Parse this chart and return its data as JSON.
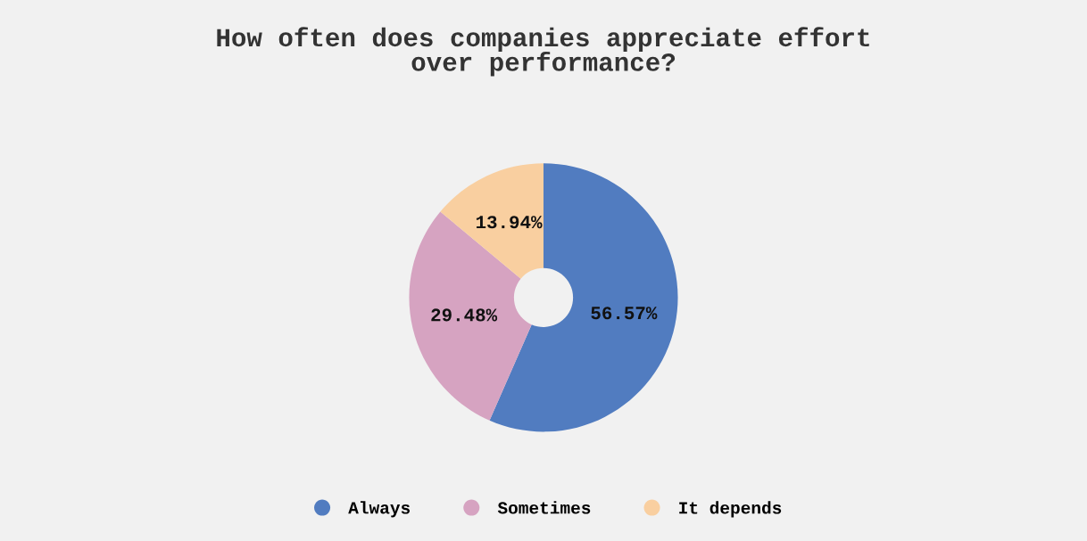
{
  "chart_data": {
    "type": "donut",
    "title": "How often does companies appreciate effort\nover performance?",
    "categories": [
      "Always",
      "Sometimes",
      "It depends"
    ],
    "values": [
      56.57,
      29.48,
      13.94
    ],
    "value_labels": [
      "56.57%",
      "29.48%",
      "13.94%"
    ],
    "colors": [
      "#517cc0",
      "#d6a3c1",
      "#f9cfa0"
    ],
    "legend": "bottom"
  }
}
